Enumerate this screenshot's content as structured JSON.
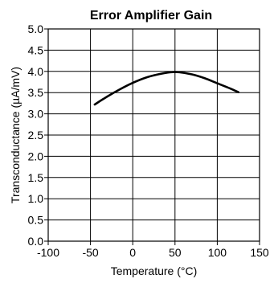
{
  "chart_data": {
    "type": "line",
    "title": "Error Amplifier Gain",
    "xlabel": "Temperature (°C)",
    "ylabel": "Transconductance (µA/mV)",
    "xlim": [
      -100,
      150
    ],
    "ylim": [
      0,
      5
    ],
    "x_ticks": [
      -100,
      -50,
      0,
      50,
      100,
      150
    ],
    "y_ticks": [
      0,
      0.5,
      1,
      1.5,
      2,
      2.5,
      3,
      3.5,
      4,
      4.5,
      5
    ],
    "x_tick_labels": [
      "-100",
      "-50",
      "0",
      "50",
      "100",
      "150"
    ],
    "y_tick_labels": [
      "0.0",
      "0.5",
      "1.0",
      "1.5",
      "2.0",
      "2.5",
      "3.0",
      "3.5",
      "4.0",
      "4.5",
      "5.0"
    ],
    "grid": true,
    "series": [
      {
        "color": "#000000",
        "x": [
          -45,
          -30,
          -15,
          0,
          15,
          30,
          45,
          55,
          70,
          85,
          100,
          115,
          125
        ],
        "y": [
          3.22,
          3.41,
          3.58,
          3.73,
          3.85,
          3.93,
          3.98,
          3.98,
          3.93,
          3.84,
          3.72,
          3.6,
          3.51
        ]
      }
    ]
  }
}
